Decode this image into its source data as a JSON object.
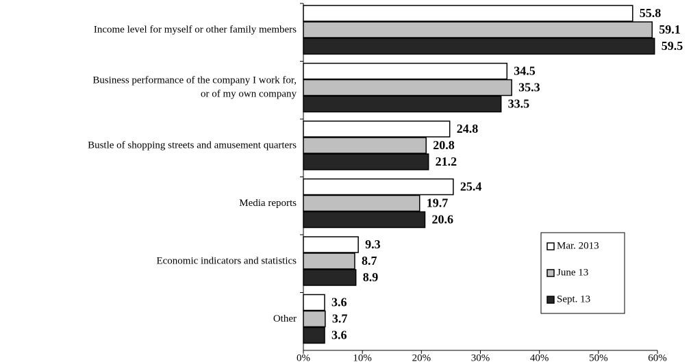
{
  "chart_data": {
    "type": "bar",
    "orientation": "horizontal",
    "categories": [
      "Income level for myself or other family members",
      "Business performance of the company I work for,\nor of my own company",
      "Bustle of shopping streets and amusement quarters",
      "Media reports",
      "Economic indicators and statistics",
      "Other"
    ],
    "series": [
      {
        "name": "Mar. 2013",
        "color": "#ffffff",
        "values": [
          55.8,
          34.5,
          24.8,
          25.4,
          9.3,
          3.6
        ]
      },
      {
        "name": "June 13",
        "color": "#bfbfbf",
        "values": [
          59.1,
          35.3,
          20.8,
          19.7,
          8.7,
          3.7
        ]
      },
      {
        "name": "Sept. 13",
        "color": "#262626",
        "values": [
          59.5,
          33.5,
          21.2,
          20.6,
          8.9,
          3.6
        ]
      }
    ],
    "xlim": [
      0,
      60
    ],
    "xticks": [
      {
        "value": 0,
        "label": "0%"
      },
      {
        "value": 10,
        "label": "10%"
      },
      {
        "value": 20,
        "label": "20%"
      },
      {
        "value": 30,
        "label": "30%"
      },
      {
        "value": 40,
        "label": "40%"
      },
      {
        "value": 50,
        "label": "50%"
      },
      {
        "value": 60,
        "label": "60%"
      }
    ],
    "grid": false,
    "legend": "lower right"
  }
}
